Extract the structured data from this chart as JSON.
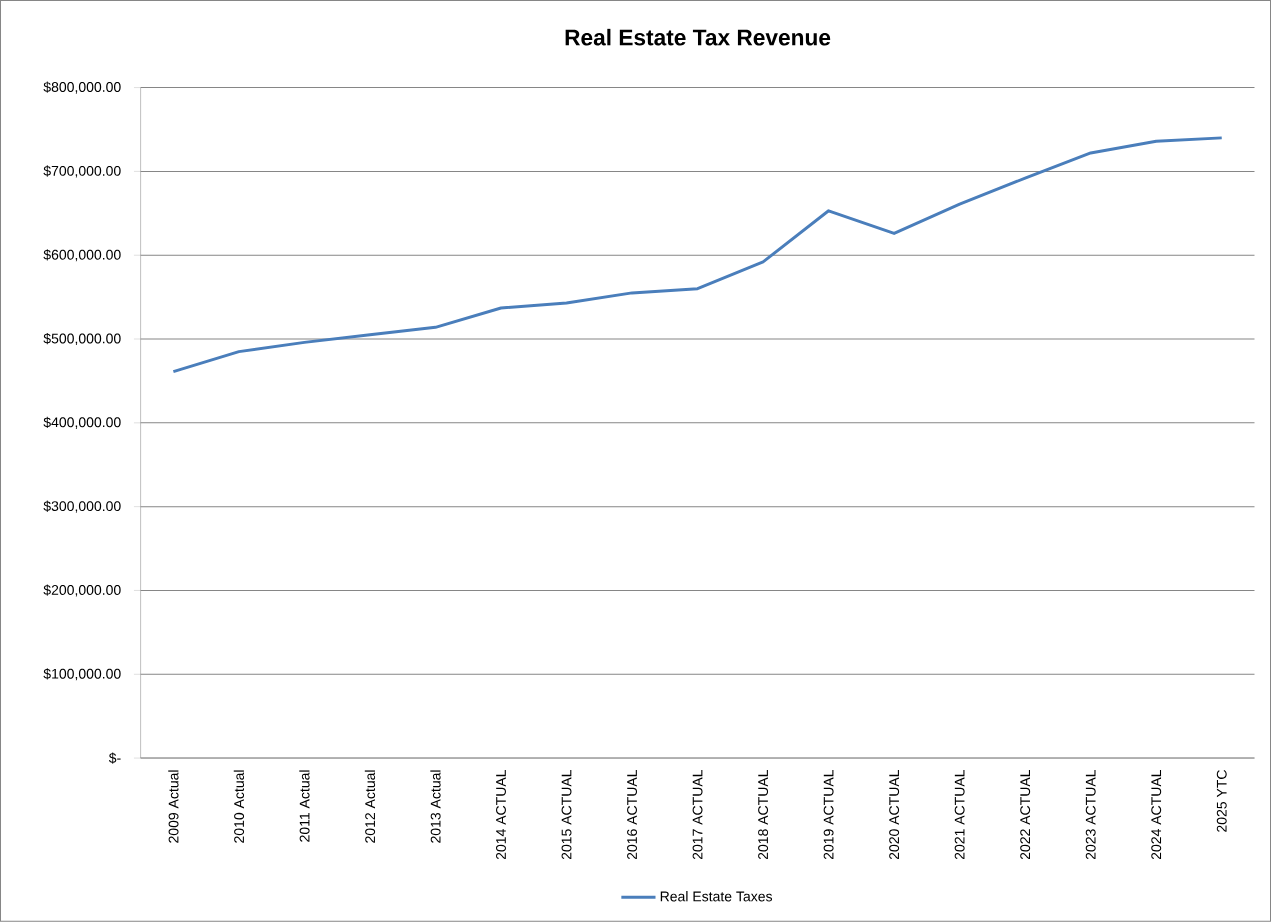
{
  "chart_data": {
    "type": "line",
    "title": "Real Estate Tax Revenue",
    "categories": [
      "2009 Actual",
      "2010 Actual",
      "2011 Actual",
      "2012 Actual",
      "2013 Actual",
      "2014 ACTUAL",
      "2015 ACTUAL",
      "2016 ACTUAL",
      "2017 ACTUAL",
      "2018 ACTUAL",
      "2019 ACTUAL",
      "2020 ACTUAL",
      "2021 ACTUAL",
      "2022 ACTUAL",
      "2023 ACTUAL",
      "2024 ACTUAL",
      "2025 YTC"
    ],
    "series": [
      {
        "name": "Real Estate Taxes",
        "color": "#4a7ebb",
        "values": [
          461000,
          485000,
          496000,
          505000,
          514000,
          537000,
          543000,
          555000,
          560000,
          592000,
          653000,
          626000,
          661000,
          692000,
          722000,
          736000,
          740000
        ]
      }
    ],
    "ylim": [
      0,
      800000
    ],
    "yticks": [
      {
        "value": 0,
        "label": "$-"
      },
      {
        "value": 100000,
        "label": "$100,000.00"
      },
      {
        "value": 200000,
        "label": "$200,000.00"
      },
      {
        "value": 300000,
        "label": "$300,000.00"
      },
      {
        "value": 400000,
        "label": "$400,000.00"
      },
      {
        "value": 500000,
        "label": "$500,000.00"
      },
      {
        "value": 600000,
        "label": "$600,000.00"
      },
      {
        "value": 700000,
        "label": "$700,000.00"
      },
      {
        "value": 800000,
        "label": "$800,000.00"
      }
    ],
    "grid": "y",
    "legend": "bottom",
    "marker": "none",
    "line_style": "solid"
  }
}
